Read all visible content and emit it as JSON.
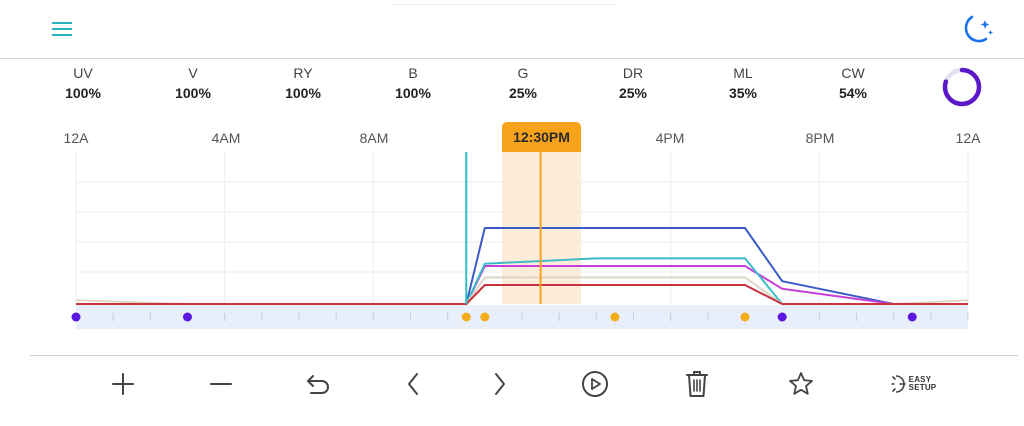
{
  "header": {
    "menu_icon": "hamburger-menu-icon",
    "mode_icon": "moon-stars-icon",
    "accent_color": "#2bb3c0",
    "moon_color": "#1a73e8"
  },
  "channels": [
    {
      "name": "UV",
      "value": "100%"
    },
    {
      "name": "V",
      "value": "100%"
    },
    {
      "name": "RY",
      "value": "100%"
    },
    {
      "name": "B",
      "value": "100%"
    },
    {
      "name": "G",
      "value": "25%"
    },
    {
      "name": "DR",
      "value": "25%"
    },
    {
      "name": "ML",
      "value": "35%"
    },
    {
      "name": "CW",
      "value": "54%"
    }
  ],
  "progress_ring": {
    "fraction": 0.8,
    "color": "#5a18c9"
  },
  "timeline": {
    "labels": [
      "12A",
      "4AM",
      "8AM",
      "4PM",
      "8PM",
      "12A"
    ],
    "current_time": "12:30PM",
    "cursor_color": "#f7a21b",
    "now_line_color": "#2bc0c4"
  },
  "chart_data": {
    "type": "line",
    "x_unit": "hour of day",
    "xlim": [
      0,
      24
    ],
    "series": [
      {
        "color": "#3a5bc7",
        "points": [
          [
            0,
            0
          ],
          [
            10.5,
            0
          ],
          [
            11,
            1
          ],
          [
            18.0,
            1
          ],
          [
            19.0,
            0.3
          ],
          [
            22,
            0
          ],
          [
            24,
            0
          ]
        ]
      },
      {
        "color": "#c63fd9",
        "points": [
          [
            0,
            0
          ],
          [
            10.5,
            0
          ],
          [
            11,
            0.5
          ],
          [
            18.0,
            0.5
          ],
          [
            19.0,
            0.2
          ],
          [
            22,
            0
          ],
          [
            24,
            0
          ]
        ]
      },
      {
        "color": "#3cbcc7",
        "points": [
          [
            0,
            0
          ],
          [
            10.5,
            0
          ],
          [
            11,
            0.53
          ],
          [
            14,
            0.6
          ],
          [
            18.0,
            0.6
          ],
          [
            19.0,
            0
          ],
          [
            24,
            0
          ]
        ]
      },
      {
        "color": "#ddd6c8",
        "points": [
          [
            0,
            0.05
          ],
          [
            3,
            0
          ],
          [
            10.5,
            0
          ],
          [
            11,
            0.35
          ],
          [
            18.0,
            0.35
          ],
          [
            19.0,
            0
          ],
          [
            22,
            0
          ],
          [
            24,
            0.05
          ]
        ]
      },
      {
        "color": "#c8323f",
        "points": [
          [
            0,
            0
          ],
          [
            10.5,
            0
          ],
          [
            11,
            0.25
          ],
          [
            18.0,
            0.25
          ],
          [
            19.0,
            0
          ],
          [
            24,
            0
          ]
        ]
      }
    ],
    "markers": [
      {
        "x": 0,
        "color": "#5a18e0"
      },
      {
        "x": 3,
        "color": "#5a18e0"
      },
      {
        "x": 10.5,
        "color": "#f4ad1a"
      },
      {
        "x": 11,
        "color": "#f4ad1a"
      },
      {
        "x": 14.5,
        "color": "#f4ad1a"
      },
      {
        "x": 18,
        "color": "#f4ad1a"
      },
      {
        "x": 19,
        "color": "#5a18e0"
      },
      {
        "x": 22.5,
        "color": "#5a18e0"
      }
    ],
    "now_line_x": 10.5,
    "cursor_x": 12.5
  },
  "toolbar": {
    "items": [
      {
        "name": "add-button",
        "icon": "plus-icon"
      },
      {
        "name": "remove-button",
        "icon": "minus-icon"
      },
      {
        "name": "undo-button",
        "icon": "undo-icon"
      },
      {
        "name": "previous-button",
        "icon": "chevron-left-icon"
      },
      {
        "name": "next-button",
        "icon": "chevron-right-icon"
      },
      {
        "name": "play-button",
        "icon": "play-circle-icon"
      },
      {
        "name": "delete-button",
        "icon": "trash-icon"
      },
      {
        "name": "favorite-button",
        "icon": "star-icon"
      },
      {
        "name": "easy-setup-button",
        "icon": "easy-setup-icon"
      }
    ],
    "easy_setup_line1": "EASY",
    "easy_setup_line2": "SETUP"
  }
}
